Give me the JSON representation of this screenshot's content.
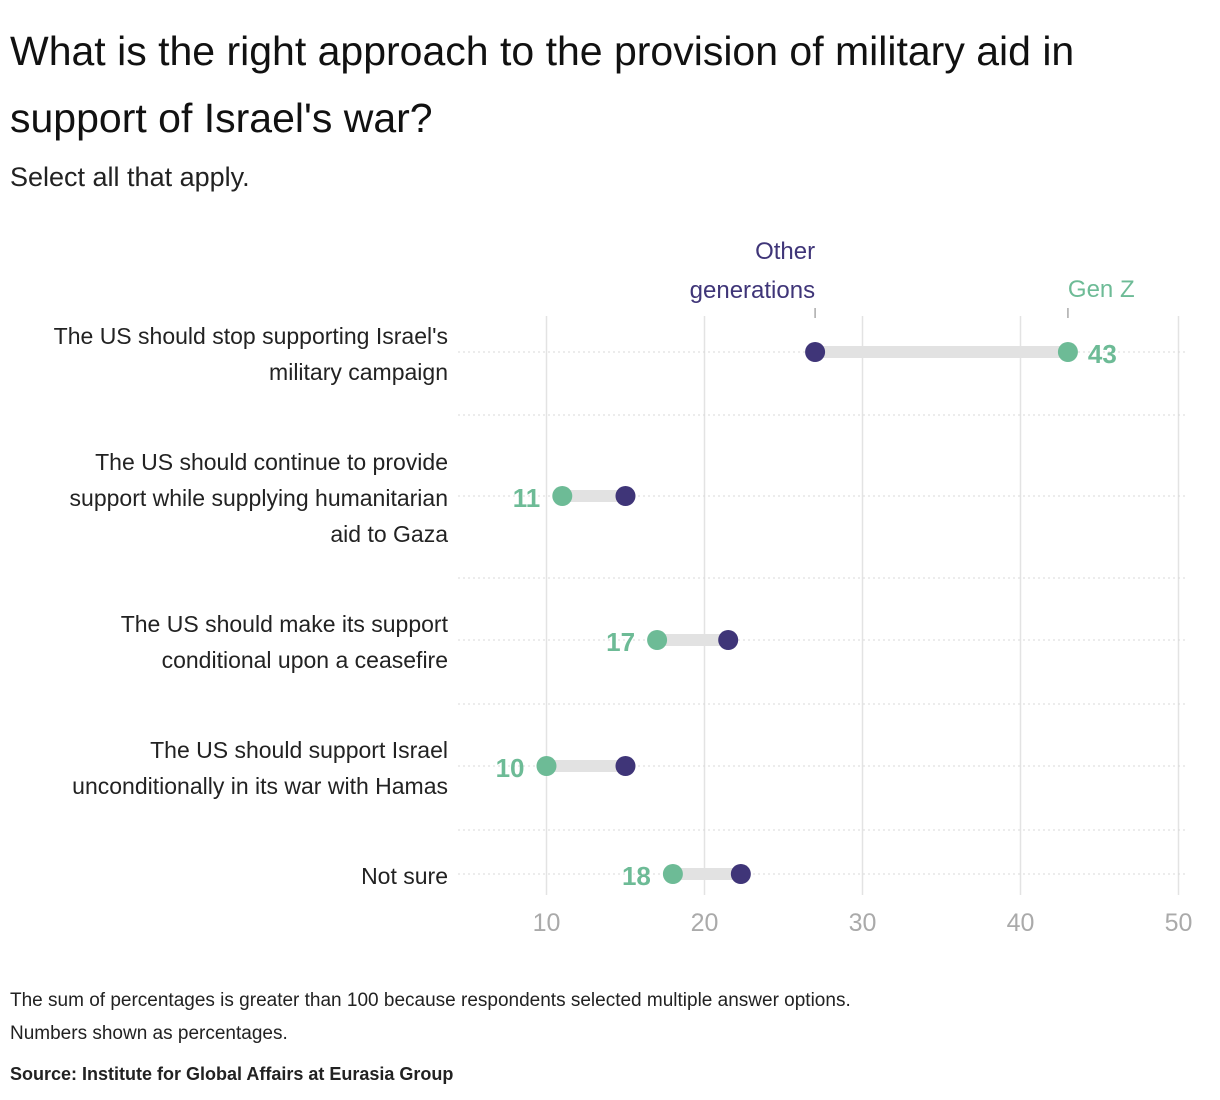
{
  "title": "What is the right approach to the provision of military aid in support of Israel's war?",
  "subtitle": "Select all that apply.",
  "chart_data": {
    "type": "dumbbell",
    "xlim": [
      4.4,
      50.6
    ],
    "xticks": [
      10,
      20,
      30,
      40,
      50
    ],
    "grid": true,
    "legend_placement": "top, labels above first row dots",
    "series": [
      {
        "name": "Other generations",
        "color": "#3f3578",
        "values": [
          27,
          15,
          21.5,
          15,
          22.3
        ]
      },
      {
        "name": "Gen Z",
        "color": "#6dbb96",
        "values": [
          43,
          11,
          17,
          10,
          18
        ]
      }
    ],
    "categories": [
      {
        "lines": [
          "The US should stop supporting Israel's",
          "military campaign"
        ]
      },
      {
        "lines": [
          "The US should continue to provide",
          "support while supplying humanitarian",
          "aid to Gaza"
        ]
      },
      {
        "lines": [
          "The US should make its support",
          "conditional upon a ceasefire"
        ]
      },
      {
        "lines": [
          "The US should support Israel",
          "unconditionally in its war with Hamas"
        ]
      },
      {
        "lines": [
          "Not sure"
        ]
      }
    ],
    "data_labels": [
      "43",
      "11",
      "17",
      "10",
      "18"
    ]
  },
  "legend": {
    "other_line1": "Other",
    "other_line2": "generations",
    "genz": "Gen Z"
  },
  "notes": [
    "The sum of percentages is greater than 100 because respondents selected multiple answer options.",
    "Numbers shown as percentages."
  ],
  "source": "Source: Institute for Global Affairs at Eurasia Group"
}
